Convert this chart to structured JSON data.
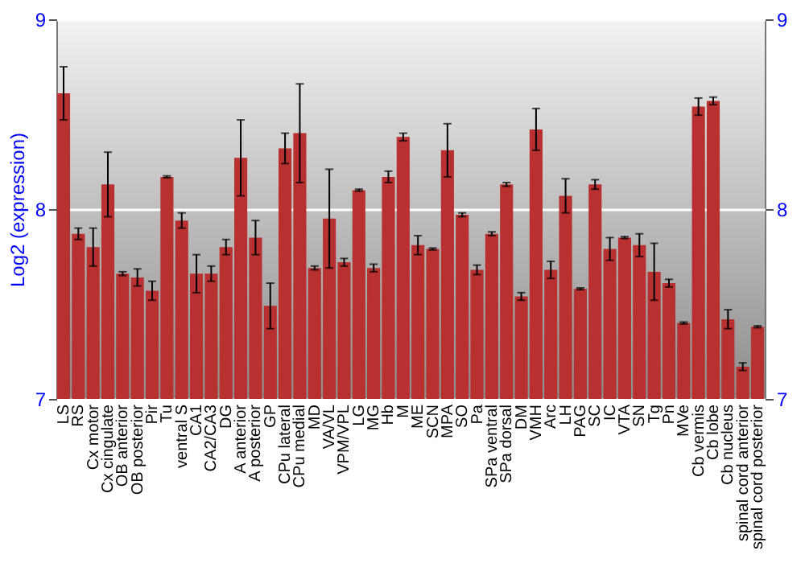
{
  "chart_data": {
    "type": "bar",
    "ylabel": "Log2 (expression)",
    "categories": [
      "LS",
      "RS",
      "Cx motor",
      "Cx cingulate",
      "OB anterior",
      "OB posterior",
      "Pir",
      "Tu",
      "ventral S",
      "CA1",
      "CA2/CA3",
      "DG",
      "A anterior",
      "A posterior",
      "GP",
      "CPu lateral",
      "CPu medial",
      "MD",
      "VA/VL",
      "VPM/VPL",
      "LG",
      "MG",
      "Hb",
      "M",
      "ME",
      "SCN",
      "MPA",
      "SO",
      "Pa",
      "SPa ventral",
      "SPa dorsal",
      "DM",
      "VMH",
      "Arc",
      "LH",
      "PAG",
      "SC",
      "IC",
      "VTA",
      "SN",
      "Tg",
      "Pn",
      "MVe",
      "Cb vermis",
      "Cb lobe",
      "Cb nucleus",
      "spinal cord anterior",
      "spinal cord posterior"
    ],
    "series": [
      {
        "color": "#b83030",
        "values": [
          8.61,
          7.87,
          7.8,
          8.13,
          7.66,
          7.64,
          7.57,
          8.17,
          7.94,
          7.66,
          7.66,
          7.8,
          8.27,
          7.85,
          7.49,
          8.32,
          8.4,
          7.69,
          7.95,
          7.72,
          8.1,
          7.69,
          8.17,
          8.38,
          7.81,
          7.79,
          8.31,
          7.97,
          7.68,
          7.87,
          8.13,
          7.54,
          8.42,
          7.68,
          8.07,
          7.58,
          8.13,
          7.79,
          7.85,
          7.81,
          7.67,
          7.61,
          7.4,
          8.54,
          8.57,
          7.42,
          7.17,
          7.38
        ],
        "errors": [
          0.14,
          0.03,
          0.1,
          0.17,
          0.01,
          0.045,
          0.05,
          0.005,
          0.04,
          0.1,
          0.04,
          0.04,
          0.2,
          0.09,
          0.12,
          0.08,
          0.26,
          0.01,
          0.26,
          0.02,
          0.005,
          0.02,
          0.03,
          0.02,
          0.05,
          0.005,
          0.14,
          0.01,
          0.025,
          0.01,
          0.01,
          0.02,
          0.11,
          0.045,
          0.09,
          0.005,
          0.025,
          0.06,
          0.005,
          0.06,
          0.15,
          0.02,
          0.005,
          0.045,
          0.02,
          0.05,
          0.02,
          0.005
        ]
      }
    ],
    "ylim": [
      7,
      9
    ],
    "yticks": [
      7,
      8,
      9
    ],
    "y2lim": [
      7,
      9
    ],
    "y2ticks": [
      7,
      8,
      9
    ],
    "grid": "y"
  }
}
